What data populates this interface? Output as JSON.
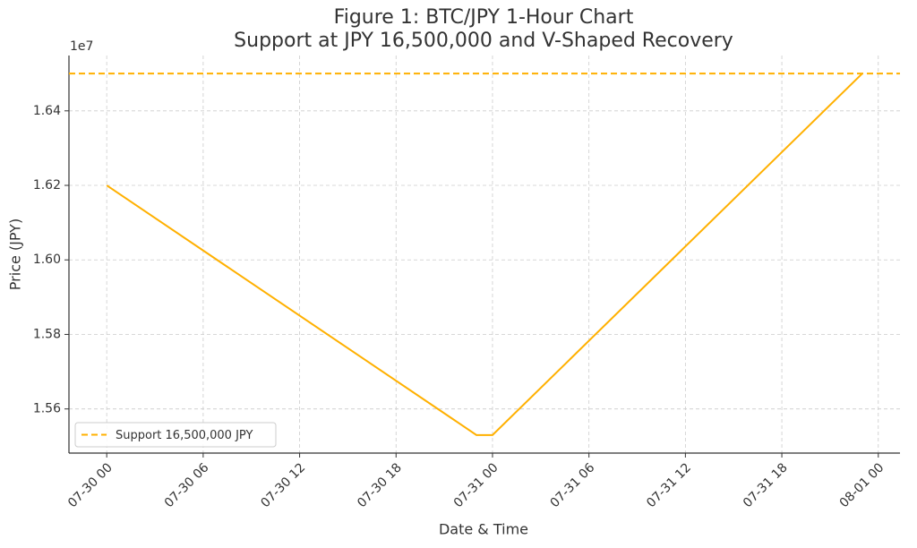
{
  "chart_data": {
    "type": "line",
    "title": "Figure 1: BTC/JPY 1-Hour Chart",
    "subtitle": "Support at JPY 16,500,000 and V-Shaped Recovery",
    "x_label": "Date & Time",
    "y_label": "Price (JPY)",
    "y_offset_label": "1e7",
    "x": [
      "07-30 00",
      "07-30 23",
      "07-31 00",
      "07-31 23"
    ],
    "series": [
      {
        "name": "BTC/JPY",
        "color": "#ffb000",
        "values": [
          16200000,
          15530000,
          15530000,
          16500000
        ]
      }
    ],
    "reference_line": {
      "name": "Support 16,500,000 JPY",
      "value": 16500000,
      "color": "#ffb000",
      "style": "dashed"
    },
    "xlim": [
      "07-29 21:39",
      "08-01 01:21"
    ],
    "xticks": [
      "07-30 00",
      "07-30 06",
      "07-30 12",
      "07-30 18",
      "07-31 00",
      "07-31 06",
      "07-31 12",
      "07-31 18",
      "08-01 00"
    ],
    "ylim": [
      15481500,
      16548500
    ],
    "yticks": [
      {
        "value": 15600000,
        "label": "1.56"
      },
      {
        "value": 15800000,
        "label": "1.58"
      },
      {
        "value": 16000000,
        "label": "1.60"
      },
      {
        "value": 16200000,
        "label": "1.62"
      },
      {
        "value": 16400000,
        "label": "1.64"
      }
    ],
    "grid": true,
    "legend": "lower left"
  }
}
